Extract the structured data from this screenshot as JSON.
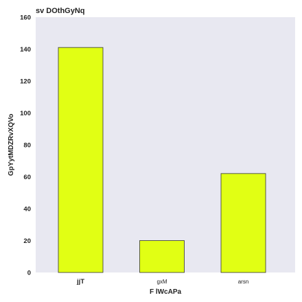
{
  "chart_data": {
    "type": "bar",
    "title": "sv DOthGyNq",
    "xlabel": "F lWcAPa",
    "ylabel": "GpYytMDZRvXQVo",
    "categories": [
      "jjT",
      "gxM",
      "arsn"
    ],
    "values": [
      141,
      20,
      62
    ],
    "ylim": [
      0,
      160
    ],
    "yticks": [
      0,
      20,
      40,
      60,
      80,
      100,
      120,
      140,
      160
    ],
    "grid": false,
    "colors": {
      "bar_fill": "#e1ff14",
      "bar_edge": "#333333",
      "plot_background": "#e8e8f1"
    }
  }
}
